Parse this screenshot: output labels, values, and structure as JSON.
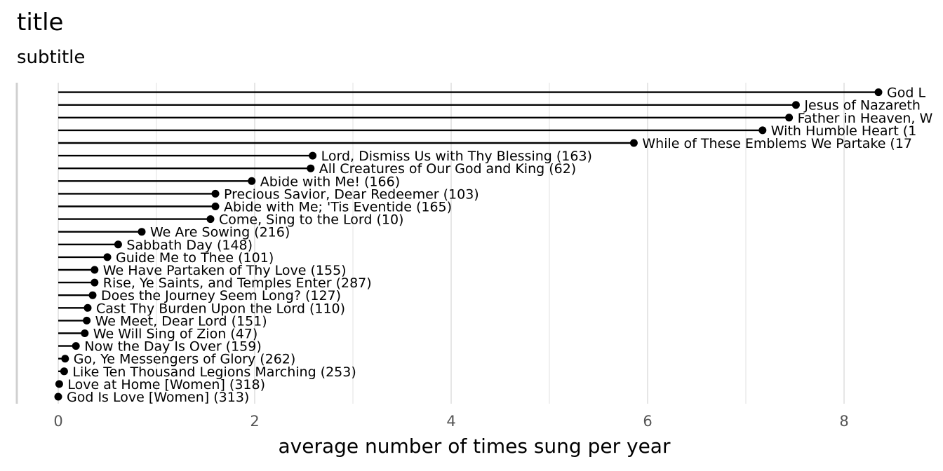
{
  "chart_data": {
    "type": "lollipop",
    "title": "title",
    "subtitle": "subtitle",
    "xlabel": "average number of times sung per year",
    "ylabel": "",
    "xlim": [
      0,
      8.9
    ],
    "xticks": [
      0,
      2,
      4,
      6,
      8
    ],
    "xtick_labels": [
      "0",
      "2",
      "4",
      "6",
      "8"
    ],
    "grid": "vertical",
    "legend": "none",
    "colors": {
      "stem": "#000000",
      "dot": "#000000",
      "grid": "#e6e6e6",
      "tick": "#555555"
    },
    "points": [
      {
        "label": "God Is Love [Women] (313)",
        "value": 0.0
      },
      {
        "label": "Love at Home [Women] (318)",
        "value": 0.01
      },
      {
        "label": "Like Ten Thousand Legions Marching (253)",
        "value": 0.06
      },
      {
        "label": "Go, Ye Messengers of Glory (262)",
        "value": 0.07
      },
      {
        "label": "Now the Day Is Over (159)",
        "value": 0.18
      },
      {
        "label": "We Will Sing of Zion (47)",
        "value": 0.27
      },
      {
        "label": "We Meet, Dear Lord (151)",
        "value": 0.29
      },
      {
        "label": "Cast Thy Burden Upon the Lord (110)",
        "value": 0.3
      },
      {
        "label": "Does the Journey Seem Long? (127)",
        "value": 0.35
      },
      {
        "label": "Rise, Ye Saints, and Temples Enter (287)",
        "value": 0.37
      },
      {
        "label": "We Have Partaken of Thy Love (155)",
        "value": 0.37
      },
      {
        "label": "Guide Me to Thee (101)",
        "value": 0.5
      },
      {
        "label": "Sabbath Day (148)",
        "value": 0.61
      },
      {
        "label": "We Are Sowing (216)",
        "value": 0.85
      },
      {
        "label": "Come, Sing to the Lord (10)",
        "value": 1.55
      },
      {
        "label": "Abide with Me; 'Tis Eventide (165)",
        "value": 1.6
      },
      {
        "label": "Precious Savior, Dear Redeemer (103)",
        "value": 1.6
      },
      {
        "label": "Abide with Me! (166)",
        "value": 1.97
      },
      {
        "label": "All Creatures of Our God and King (62)",
        "value": 2.57
      },
      {
        "label": "Lord, Dismiss Us with Thy Blessing (163)",
        "value": 2.59
      },
      {
        "label": "While of These Emblems We Partake (17",
        "value": 5.86
      },
      {
        "label": "With Humble Heart (1",
        "value": 7.17
      },
      {
        "label": "Father in Heaven, W",
        "value": 7.44
      },
      {
        "label": "Jesus of Nazareth",
        "value": 7.51
      },
      {
        "label": "God L",
        "value": 8.35
      }
    ]
  }
}
